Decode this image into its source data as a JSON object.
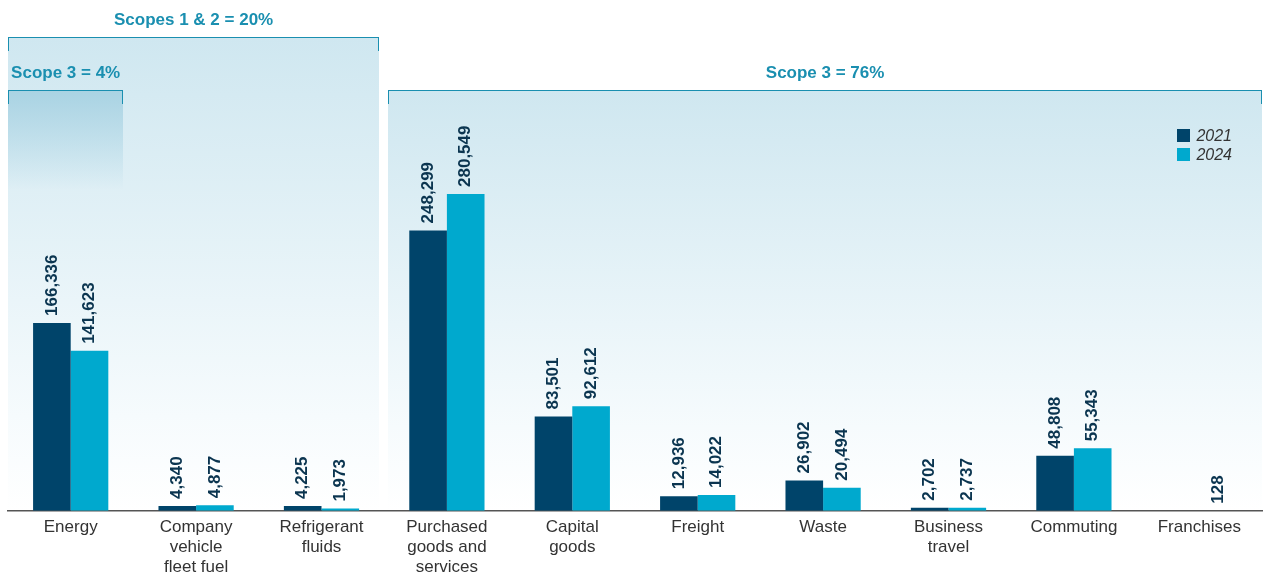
{
  "chart_data": {
    "type": "bar",
    "categories": [
      "Energy",
      "Company vehicle fleet fuel",
      "Refrigerant fluids",
      "Purchased goods and services",
      "Capital goods",
      "Freight",
      "Waste",
      "Business travel",
      "Commuting",
      "Franchises"
    ],
    "series": [
      {
        "name": "2021",
        "color": "#00446a",
        "values": [
          166336,
          4340,
          4225,
          248299,
          83501,
          12936,
          26902,
          2702,
          48808,
          null
        ],
        "value_labels": [
          "166,336",
          "4,340",
          "4,225",
          "248,299",
          "83,501",
          "12,936",
          "26,902",
          "2,702",
          "48,808",
          null
        ]
      },
      {
        "name": "2024",
        "color": "#00a9ce",
        "values": [
          141623,
          4877,
          1973,
          280549,
          92612,
          14022,
          20494,
          2737,
          55343,
          128
        ],
        "value_labels": [
          "141,623",
          "4,877",
          "1,973",
          "280,549",
          "92,612",
          "14,022",
          "20,494",
          "2,737",
          "55,343",
          "128"
        ]
      }
    ],
    "legend": "top right",
    "annotations": [
      "Scope 3 = 4%"
    ],
    "grid": false,
    "tick_labels": "x",
    "bands": [
      {
        "axis": "x",
        "from": "Energy",
        "to": "Refrigerant fluids",
        "label": "Scopes 1 & 2 = 20%",
        "color": "#cfe7f0"
      },
      {
        "axis": "x",
        "from": "Purchased goods and services",
        "to": "Franchises",
        "label": "Scope 3 = 76%",
        "color": "#cfe7f0"
      }
    ]
  }
}
